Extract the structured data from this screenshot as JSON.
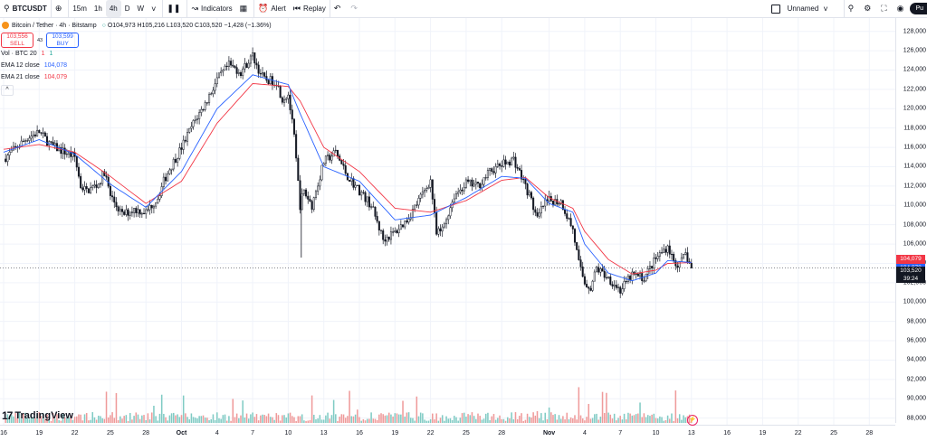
{
  "toolbar": {
    "symbol": "BTCUSDT",
    "intervals": [
      "15m",
      "1h",
      "4h",
      "D",
      "W"
    ],
    "active_interval": "4h",
    "indicators_label": "Indicators",
    "alert_label": "Alert",
    "replay_label": "Replay",
    "layout_name": "Unnamed",
    "publish_label": "Pu"
  },
  "legend": {
    "title": "Bitcoin / Tether · 4h · Bitstamp",
    "ohlc": {
      "open_label": "O",
      "open": "104,973",
      "high_label": "H",
      "high": "105,216",
      "low_label": "L",
      "low": "103,520",
      "close_label": "C",
      "close": "103,520",
      "change": "−1,428 (−1.36%)"
    },
    "sell_price": "103,556",
    "sell_label": "SELL",
    "spread": "43",
    "buy_price": "103,599",
    "buy_label": "BUY",
    "indicators": [
      {
        "name": "Vol · BTC 20",
        "values": [
          "1",
          "1"
        ]
      },
      {
        "name": "EMA 12 close",
        "value": "104,078"
      },
      {
        "name": "EMA 21 close",
        "value": "104,079"
      }
    ],
    "collapse_glyph": "^"
  },
  "logo": {
    "text": "TradingView",
    "mark": "17"
  },
  "price_tags": {
    "ema21": "104,079",
    "ema12": "104,078",
    "last": "103,520",
    "countdown": "39:24"
  },
  "colors": {
    "up": "#26a69a",
    "down": "#ef5350",
    "candle": "#131722",
    "ema12": "#2962ff",
    "ema21": "#f23645",
    "volume_up": "#80cbc4",
    "volume_down": "#ef9a9a"
  },
  "chart_data": {
    "type": "candlestick",
    "symbol": "BTCUSDT",
    "interval": "4h",
    "ylim": [
      87500,
      129000
    ],
    "y_ticks": [
      88000,
      90000,
      92000,
      94000,
      96000,
      98000,
      100000,
      102000,
      104000,
      106000,
      108000,
      110000,
      112000,
      114000,
      116000,
      118000,
      120000,
      122000,
      124000,
      126000,
      128000
    ],
    "y_tick_labels": [
      "88,000",
      "90,000",
      "92,000",
      "94,000",
      "96,000",
      "98,000",
      "100,000",
      "102,000",
      "104,000",
      "106,000",
      "108,000",
      "110,000",
      "112,000",
      "114,000",
      "116,000",
      "118,000",
      "120,000",
      "122,000",
      "124,000",
      "126,000",
      "128,000"
    ],
    "x_tick_labels": [
      "16",
      "19",
      "22",
      "25",
      "28",
      "Oct",
      "4",
      "7",
      "10",
      "13",
      "16",
      "19",
      "22",
      "25",
      "28",
      "Nov",
      "4",
      "7",
      "10",
      "13",
      "16",
      "19",
      "22",
      "25",
      "28"
    ],
    "x_tick_days": [
      0,
      3,
      6,
      9,
      12,
      15,
      18,
      21,
      24,
      27,
      30,
      33,
      36,
      39,
      42,
      46,
      49,
      52,
      55,
      58,
      61,
      64,
      67,
      70,
      73
    ],
    "bars_per_day": 6,
    "last_price": 103520,
    "ema12_last": 104078,
    "ema21_last": 104079,
    "close_path": [
      [
        0,
        114800
      ],
      [
        2,
        117000
      ],
      [
        3,
        117600
      ],
      [
        4,
        116200
      ],
      [
        5,
        115600
      ],
      [
        6,
        115000
      ],
      [
        6.5,
        112000
      ],
      [
        7,
        111500
      ],
      [
        8,
        112200
      ],
      [
        8.5,
        113500
      ],
      [
        9,
        111000
      ],
      [
        10,
        109000
      ],
      [
        11,
        109600
      ],
      [
        12,
        109300
      ],
      [
        13,
        110800
      ],
      [
        13.5,
        112500
      ],
      [
        14,
        113800
      ],
      [
        15,
        116000
      ],
      [
        16,
        118500
      ],
      [
        17,
        120500
      ],
      [
        18,
        123000
      ],
      [
        19,
        124500
      ],
      [
        20,
        123800
      ],
      [
        21,
        125500
      ],
      [
        21.5,
        124000
      ],
      [
        22,
        123000
      ],
      [
        23,
        122800
      ],
      [
        23.5,
        121000
      ],
      [
        24,
        121500
      ],
      [
        24.5,
        117000
      ],
      [
        25,
        110000
      ],
      [
        25.3,
        111500
      ],
      [
        26,
        110000
      ],
      [
        27,
        114500
      ],
      [
        28,
        115500
      ],
      [
        29,
        113000
      ],
      [
        30,
        111500
      ],
      [
        31,
        110000
      ],
      [
        32,
        106500
      ],
      [
        33,
        107200
      ],
      [
        34,
        108500
      ],
      [
        35,
        110500
      ],
      [
        36,
        112600
      ],
      [
        36.5,
        107000
      ],
      [
        37,
        107500
      ],
      [
        38,
        111000
      ],
      [
        39,
        112300
      ],
      [
        40,
        112000
      ],
      [
        41,
        113500
      ],
      [
        42,
        114200
      ],
      [
        43,
        114800
      ],
      [
        44,
        112000
      ],
      [
        44.5,
        110500
      ],
      [
        45,
        108500
      ],
      [
        45.5,
        110000
      ],
      [
        46,
        110500
      ],
      [
        47,
        110400
      ],
      [
        48,
        107500
      ],
      [
        48.5,
        104000
      ],
      [
        49,
        102000
      ],
      [
        49.5,
        101500
      ],
      [
        50,
        103500
      ],
      [
        51,
        102500
      ],
      [
        52,
        101200
      ],
      [
        53,
        102800
      ],
      [
        54,
        102500
      ],
      [
        55,
        104500
      ],
      [
        56,
        105800
      ],
      [
        56.5,
        104200
      ],
      [
        57,
        103800
      ],
      [
        57.5,
        104973
      ],
      [
        58,
        103520
      ]
    ],
    "ema12_path": [
      [
        0,
        115500
      ],
      [
        3,
        116800
      ],
      [
        6,
        115300
      ],
      [
        9,
        112200
      ],
      [
        12,
        109800
      ],
      [
        15,
        113500
      ],
      [
        18,
        120000
      ],
      [
        21,
        123500
      ],
      [
        24,
        122500
      ],
      [
        25,
        119500
      ],
      [
        27,
        114000
      ],
      [
        30,
        112500
      ],
      [
        33,
        108500
      ],
      [
        36,
        109000
      ],
      [
        39,
        110800
      ],
      [
        42,
        113000
      ],
      [
        44,
        112800
      ],
      [
        46,
        110200
      ],
      [
        48,
        109300
      ],
      [
        49,
        106000
      ],
      [
        51,
        103000
      ],
      [
        53,
        102200
      ],
      [
        55,
        103000
      ],
      [
        56,
        104300
      ],
      [
        58,
        104078
      ]
    ],
    "ema21_path": [
      [
        0,
        115800
      ],
      [
        3,
        116300
      ],
      [
        6,
        115500
      ],
      [
        9,
        113000
      ],
      [
        12,
        110200
      ],
      [
        15,
        112500
      ],
      [
        18,
        118500
      ],
      [
        21,
        122600
      ],
      [
        24,
        122300
      ],
      [
        25,
        120800
      ],
      [
        27,
        116000
      ],
      [
        30,
        113500
      ],
      [
        33,
        109700
      ],
      [
        36,
        109300
      ],
      [
        39,
        110500
      ],
      [
        42,
        112600
      ],
      [
        44,
        112900
      ],
      [
        46,
        110800
      ],
      [
        48,
        109700
      ],
      [
        49,
        107300
      ],
      [
        51,
        104400
      ],
      [
        53,
        102900
      ],
      [
        55,
        103300
      ],
      [
        56,
        104000
      ],
      [
        58,
        104079
      ]
    ]
  }
}
